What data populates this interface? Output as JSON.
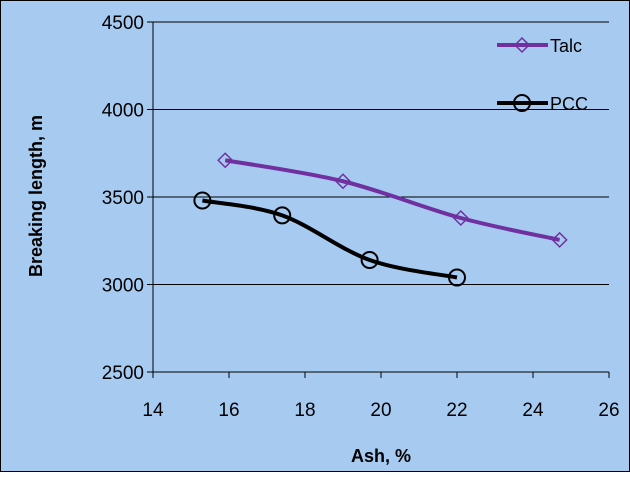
{
  "chart_data": {
    "type": "line",
    "xlabel": "Ash, %",
    "ylabel": "Breaking length, m",
    "xlim": [
      14,
      26
    ],
    "ylim": [
      2500,
      4500
    ],
    "x_ticks": [
      14,
      16,
      18,
      20,
      22,
      24,
      26
    ],
    "y_ticks": [
      2500,
      3000,
      3500,
      4000,
      4500
    ],
    "grid": "horizontal",
    "legend_position": "top-right",
    "background_color": "#a6caf0",
    "series": [
      {
        "name": "Talc",
        "color": "#7030a0",
        "marker": "diamond",
        "x": [
          15.9,
          19.0,
          22.1,
          24.7
        ],
        "y": [
          3710,
          3590,
          3380,
          3255
        ]
      },
      {
        "name": "PCC",
        "color": "#000000",
        "marker": "circle",
        "x": [
          15.3,
          17.4,
          19.7,
          22.0
        ],
        "y": [
          3480,
          3395,
          3140,
          3040
        ]
      }
    ]
  }
}
